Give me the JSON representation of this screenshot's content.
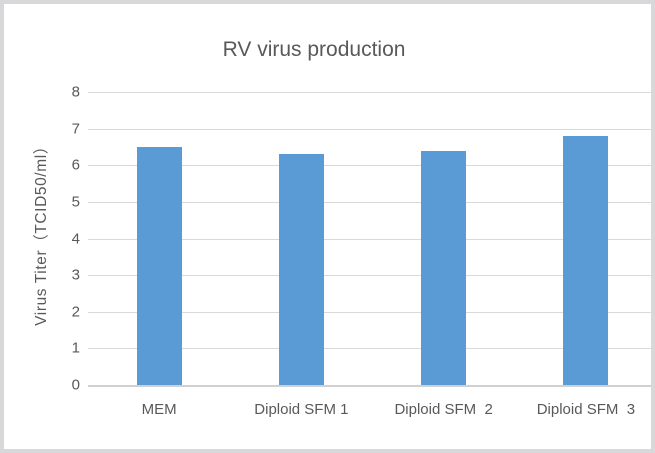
{
  "chart_data": {
    "type": "bar",
    "title": "RV virus production",
    "categories": [
      "MEM",
      "Diploid SFM 1",
      "Diploid SFM  2",
      "Diploid SFM  3"
    ],
    "values": [
      6.5,
      6.3,
      6.4,
      6.8
    ],
    "xlabel": "",
    "ylabel": "Virus Titer（TCID50/ml）",
    "ylim": [
      0,
      8
    ],
    "ytick_step": 1,
    "grid": true,
    "legend_position": "none",
    "bar_color": "#5B9BD5",
    "gridline_color": "#D9D9D9",
    "axis_line_color": "#D0D0D0",
    "text_color": "#595959"
  }
}
